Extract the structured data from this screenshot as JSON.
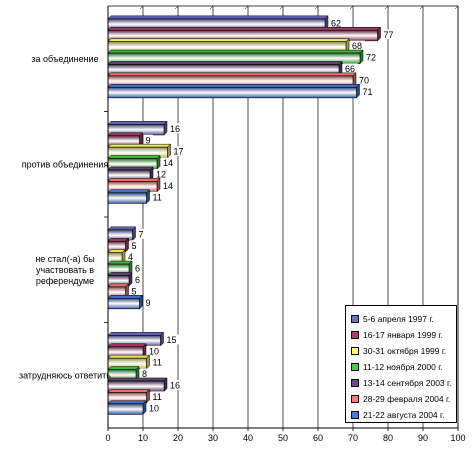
{
  "chart_data": {
    "type": "bar",
    "orientation": "horizontal",
    "categories": [
      "за объединение",
      "против объединения",
      "не стал(-а) бы участвовать в референдуме",
      "затрудняюсь ответить"
    ],
    "category_lines": [
      [
        "за объединение"
      ],
      [
        "против объединения"
      ],
      [
        "не стал(-а) бы",
        "участвовать в",
        "референдуме"
      ],
      [
        "затрудняюсь ответить"
      ]
    ],
    "series": [
      {
        "name": "5-6 апреля 1997 г.",
        "color": "#6E6EC8",
        "values": [
          62,
          16,
          7,
          15
        ]
      },
      {
        "name": "16-17 января 1999 г.",
        "color": "#A8406A",
        "values": [
          77,
          9,
          5,
          10
        ]
      },
      {
        "name": "30-31 октября 1999 г.",
        "color": "#FFFF70",
        "values": [
          68,
          17,
          4,
          11
        ]
      },
      {
        "name": "11-12 ноября 2000 г.",
        "color": "#44CC44",
        "values": [
          72,
          14,
          6,
          8
        ]
      },
      {
        "name": "13-14 сентября 2003 г.",
        "color": "#6A4A80",
        "values": [
          66,
          12,
          6,
          16
        ]
      },
      {
        "name": "28-29 февраля 2004 г.",
        "color": "#FF7A7A",
        "values": [
          70,
          14,
          5,
          11
        ]
      },
      {
        "name": "21-22 августа 2004 г.",
        "color": "#4A7ADF",
        "values": [
          71,
          11,
          9,
          10
        ]
      }
    ],
    "xlim": [
      0,
      100
    ],
    "x_ticks": [
      0,
      10,
      20,
      30,
      40,
      50,
      60,
      70,
      80,
      90,
      100
    ],
    "grid": true,
    "legend_position": "bottom-right"
  }
}
